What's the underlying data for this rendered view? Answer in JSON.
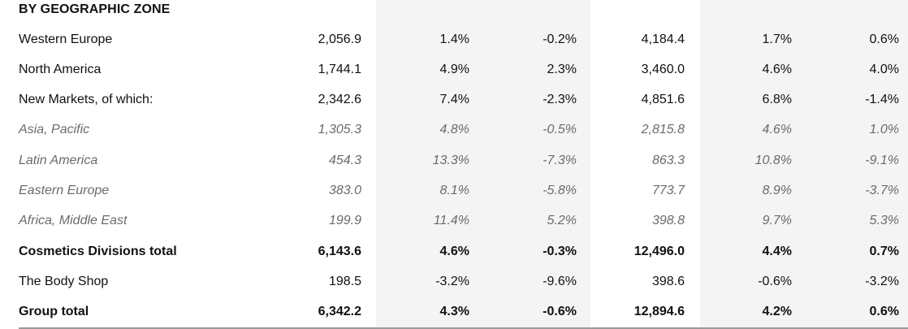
{
  "section_title": "BY GEOGRAPHIC ZONE",
  "rows": [
    {
      "label": "Western Europe",
      "values": [
        "2,056.9",
        "1.4%",
        "-0.2%",
        "4,184.4",
        "1.7%",
        "0.6%"
      ],
      "style": "normal"
    },
    {
      "label": "North America",
      "values": [
        "1,744.1",
        "4.9%",
        "2.3%",
        "3,460.0",
        "4.6%",
        "4.0%"
      ],
      "style": "normal"
    },
    {
      "label": "New Markets, of which:",
      "values": [
        "2,342.6",
        "7.4%",
        "-2.3%",
        "4,851.6",
        "6.8%",
        "-1.4%"
      ],
      "style": "normal"
    },
    {
      "label": "Asia, Pacific",
      "values": [
        "1,305.3",
        "4.8%",
        "-0.5%",
        "2,815.8",
        "4.6%",
        "1.0%"
      ],
      "style": "sub"
    },
    {
      "label": "Latin America",
      "values": [
        "454.3",
        "13.3%",
        "-7.3%",
        "863.3",
        "10.8%",
        "-9.1%"
      ],
      "style": "sub"
    },
    {
      "label": "Eastern Europe",
      "values": [
        "383.0",
        "8.1%",
        "-5.8%",
        "773.7",
        "8.9%",
        "-3.7%"
      ],
      "style": "sub"
    },
    {
      "label": "Africa, Middle East",
      "values": [
        "199.9",
        "11.4%",
        "5.2%",
        "398.8",
        "9.7%",
        "5.3%"
      ],
      "style": "sub"
    },
    {
      "label": "Cosmetics Divisions total",
      "values": [
        "6,143.6",
        "4.6%",
        "-0.3%",
        "12,496.0",
        "4.4%",
        "0.7%"
      ],
      "style": "bold"
    },
    {
      "label": "The Body Shop",
      "values": [
        "198.5",
        "-3.2%",
        "-9.6%",
        "398.6",
        "-0.6%",
        "-3.2%"
      ],
      "style": "normal"
    },
    {
      "label": "Group total",
      "values": [
        "6,342.2",
        "4.3%",
        "-0.6%",
        "12,894.6",
        "4.2%",
        "0.6%"
      ],
      "style": "bold"
    }
  ]
}
